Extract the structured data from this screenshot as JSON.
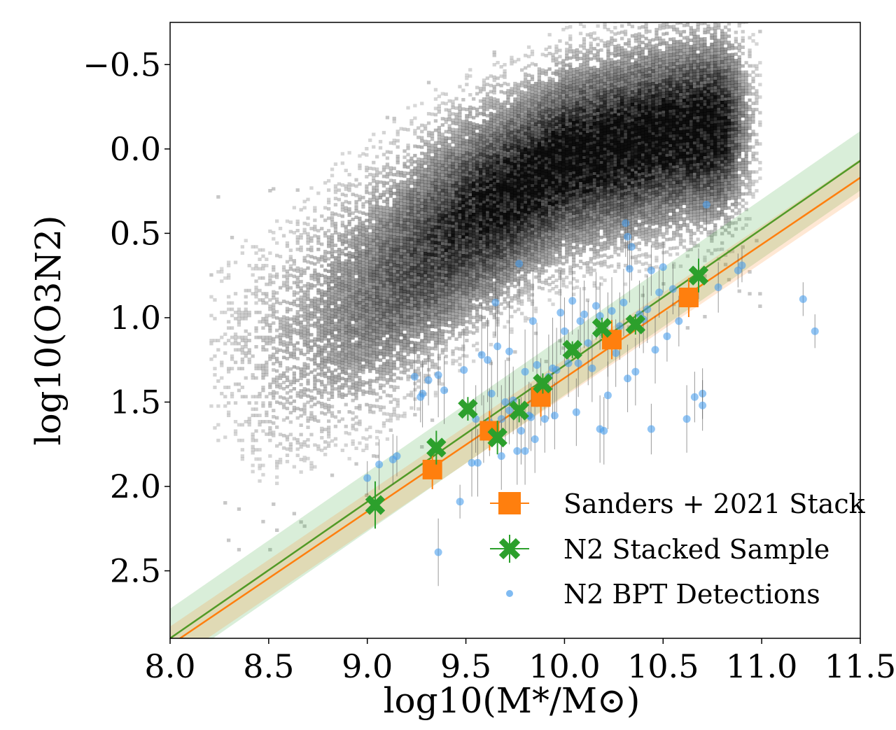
{
  "chart_data": {
    "type": "scatter",
    "title": "",
    "xlabel": "log10(M*/M⊙)",
    "ylabel": "log10(O3N2)",
    "xlim": [
      8.0,
      11.5
    ],
    "ylim": [
      2.9,
      -0.75
    ],
    "y_inverted": true,
    "grid": false,
    "x_ticks": [
      {
        "value": 8.0,
        "label": "8.0"
      },
      {
        "value": 8.5,
        "label": "8.5"
      },
      {
        "value": 9.0,
        "label": "9.0"
      },
      {
        "value": 9.5,
        "label": "9.5"
      },
      {
        "value": 10.0,
        "label": "10.0"
      },
      {
        "value": 10.5,
        "label": "10.5"
      },
      {
        "value": 11.0,
        "label": "11.0"
      },
      {
        "value": 11.5,
        "label": "11.5"
      }
    ],
    "y_ticks": [
      {
        "value": -0.5,
        "label": "−0.5"
      },
      {
        "value": 0.0,
        "label": "0.0"
      },
      {
        "value": 0.5,
        "label": "0.5"
      },
      {
        "value": 1.0,
        "label": "1.0"
      },
      {
        "value": 1.5,
        "label": "1.5"
      },
      {
        "value": 2.0,
        "label": "2.0"
      },
      {
        "value": 2.5,
        "label": "2.5"
      }
    ],
    "background_density": {
      "description": "2D histogram of local galaxy sample (greyscale)",
      "ridge": [
        [
          8.5,
          1.2
        ],
        [
          9.0,
          0.85
        ],
        [
          9.5,
          0.4
        ],
        [
          10.0,
          0.05
        ],
        [
          10.5,
          -0.1
        ],
        [
          10.9,
          -0.15
        ]
      ],
      "x_range": [
        8.2,
        11.0
      ],
      "color": "#000000"
    },
    "fit_lines": [
      {
        "name": "N2 Stacked Sample fit",
        "x": [
          8.0,
          11.5
        ],
        "y": [
          2.9,
          0.07
        ],
        "color": "#2ca02c",
        "band_width": 0.08
      },
      {
        "name": "Sanders+2021 fit",
        "x": [
          8.0,
          11.5
        ],
        "y": [
          2.94,
          0.17
        ],
        "color": "#ff7f0e",
        "band_width": 0.05
      }
    ],
    "series": [
      {
        "name": "Sanders + 2021 Stack",
        "marker": "square",
        "color": "#ff7f0e",
        "x": [
          9.33,
          9.62,
          9.88,
          10.24,
          10.63
        ],
        "y": [
          1.9,
          1.67,
          1.47,
          1.13,
          0.88
        ],
        "yerr": [
          0.05,
          0.05,
          0.05,
          0.05,
          0.05
        ]
      },
      {
        "name": "N2 Stacked Sample",
        "marker": "x",
        "color": "#2ca02c",
        "x": [
          9.04,
          9.35,
          9.51,
          9.66,
          9.77,
          9.89,
          10.04,
          10.19,
          10.36,
          10.68
        ],
        "y": [
          2.11,
          1.77,
          1.54,
          1.71,
          1.55,
          1.39,
          1.19,
          1.06,
          1.04,
          0.75
        ],
        "yerr": [
          0.14,
          0.1,
          0.07,
          0.1,
          0.07,
          0.06,
          0.05,
          0.06,
          0.06,
          0.1
        ]
      },
      {
        "name": "N2 BPT Detections",
        "marker": "circle",
        "color": "#4a9eec",
        "x": [
          9.0,
          9.06,
          9.13,
          9.15,
          9.24,
          9.28,
          9.31,
          9.36,
          9.39,
          9.47,
          9.49,
          9.53,
          9.56,
          9.58,
          9.61,
          9.63,
          9.66,
          9.68,
          9.7,
          9.72,
          9.74,
          9.76,
          9.78,
          9.8,
          9.82,
          9.84,
          9.86,
          9.88,
          9.9,
          9.92,
          9.94,
          9.96,
          9.98,
          10.0,
          10.02,
          10.04,
          10.06,
          10.08,
          10.1,
          10.12,
          10.14,
          10.16,
          10.18,
          10.2,
          10.22,
          10.24,
          10.26,
          10.28,
          10.3,
          10.32,
          10.34,
          10.36,
          10.38,
          10.4,
          10.42,
          10.44,
          10.46,
          10.48,
          10.5,
          10.52,
          10.55,
          10.58,
          10.62,
          10.66,
          10.7,
          10.72,
          10.78,
          10.88,
          10.9,
          11.21,
          11.27,
          9.36,
          9.27,
          9.62,
          9.68,
          9.8,
          9.85,
          9.95,
          10.07,
          10.18,
          10.22,
          10.31,
          10.32,
          10.33,
          10.44,
          10.68,
          10.7,
          9.77,
          9.83,
          9.65,
          9.55,
          9.59,
          9.72
        ],
        "y": [
          1.95,
          1.87,
          1.84,
          1.82,
          1.35,
          1.45,
          1.37,
          1.34,
          1.43,
          2.09,
          1.31,
          1.86,
          1.86,
          1.22,
          1.25,
          1.45,
          1.17,
          1.6,
          1.5,
          1.2,
          1.49,
          1.79,
          1.67,
          1.32,
          1.58,
          1.02,
          1.28,
          1.44,
          1.6,
          1.35,
          1.3,
          1.31,
          0.97,
          1.08,
          1.27,
          0.9,
          1.56,
          1.02,
          0.98,
          1.15,
          1.3,
          0.93,
          0.99,
          1.67,
          1.1,
          0.96,
          1.21,
          1.05,
          0.91,
          1.36,
          0.58,
          1.32,
          0.98,
          1.01,
          0.95,
          0.72,
          1.19,
          0.85,
          0.7,
          1.11,
          0.83,
          1.02,
          1.6,
          1.47,
          1.45,
          0.33,
          0.82,
          0.72,
          0.69,
          0.89,
          1.08,
          2.39,
          1.47,
          1.62,
          1.82,
          1.79,
          1.72,
          1.58,
          1.27,
          1.66,
          1.46,
          0.44,
          0.52,
          0.71,
          1.66,
          0.74,
          1.52,
          0.68,
          1.59,
          0.91,
          1.6,
          1.66,
          1.55
        ],
        "yerr": [
          0.1,
          0.15,
          0.15,
          0.12,
          0.2,
          0.2,
          0.15,
          0.25,
          0.2,
          0.1,
          0.25,
          0.2,
          0.2,
          0.3,
          0.25,
          0.2,
          0.3,
          0.2,
          0.25,
          0.3,
          0.2,
          0.2,
          0.2,
          0.25,
          0.2,
          0.3,
          0.25,
          0.2,
          0.2,
          0.25,
          0.3,
          0.25,
          0.25,
          0.2,
          0.2,
          0.2,
          0.2,
          0.2,
          0.2,
          0.25,
          0.2,
          0.2,
          0.2,
          0.2,
          0.25,
          0.2,
          0.2,
          0.2,
          0.2,
          0.2,
          0.2,
          0.2,
          0.2,
          0.2,
          0.2,
          0.15,
          0.2,
          0.15,
          0.15,
          0.15,
          0.15,
          0.15,
          0.2,
          0.15,
          0.15,
          0.15,
          0.15,
          0.1,
          0.1,
          0.1,
          0.1,
          0.2,
          0.15,
          0.2,
          0.2,
          0.2,
          0.2,
          0.2,
          0.2,
          0.2,
          0.2,
          0.2,
          0.2,
          0.2,
          0.15,
          0.15,
          0.15,
          0.2,
          0.2,
          0.2,
          0.2,
          0.2,
          0.2
        ]
      }
    ],
    "legend": {
      "position": "bottom-right",
      "entries": [
        "Sanders + 2021 Stack",
        "N2 Stacked Sample",
        "N2 BPT Detections"
      ]
    }
  }
}
